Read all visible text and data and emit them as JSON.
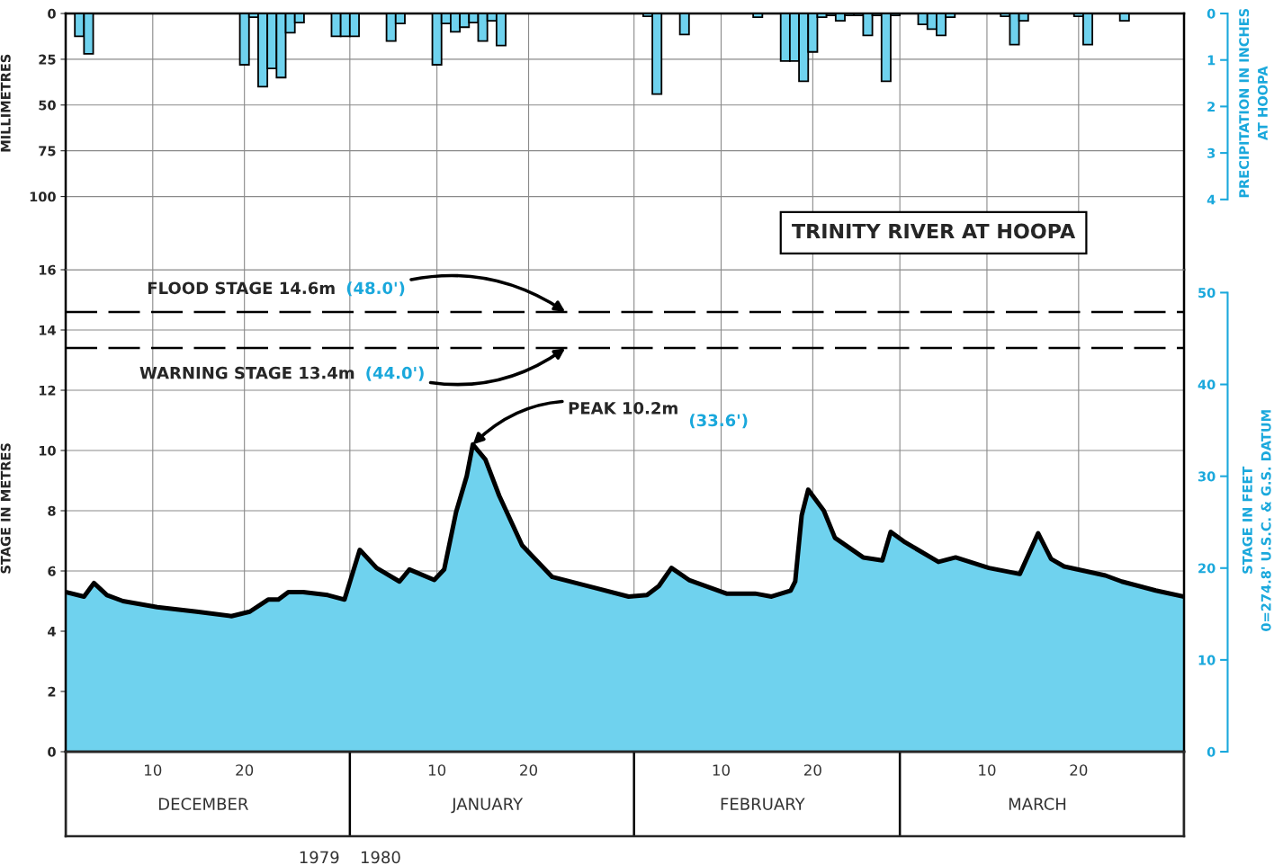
{
  "chart_data": [
    {
      "type": "bar",
      "title": "TRINITY RIVER AT HOOPA",
      "ylabel": "MILLIMETRES",
      "y2label": "PRECIPITATION IN INCHES\nAT HOOPA",
      "x": [
        "1979-12-02T12:00",
        "1979-12-03T12:00",
        "1979-12-20T12:00",
        "1979-12-21T12:00",
        "1979-12-22T12:00",
        "1979-12-23T12:00",
        "1979-12-24T12:00",
        "1979-12-25T12:00",
        "1979-12-26T12:00",
        "1979-12-30T12:00",
        "1979-12-31T12:00",
        "1980-01-01T12:00",
        "1980-01-05T12:00",
        "1980-01-06T12:00",
        "1980-01-10T12:00",
        "1980-01-11T12:00",
        "1980-01-12T12:00",
        "1980-01-13T12:00",
        "1980-01-14T12:00",
        "1980-01-15T12:00",
        "1980-01-16T12:00",
        "1980-01-17T12:00",
        "1980-02-02T12:00",
        "1980-02-03T12:00",
        "1980-02-06T12:00",
        "1980-02-14T12:00",
        "1980-02-17T12:00",
        "1980-02-18T12:00",
        "1980-02-19T12:00",
        "1980-02-20T12:00",
        "1980-02-21T12:00",
        "1980-02-22T12:00",
        "1980-02-23T12:00",
        "1980-02-24T12:00",
        "1980-02-25T12:00",
        "1980-02-26T12:00",
        "1980-02-27T12:00",
        "1980-02-28T12:00",
        "1980-02-29T12:00",
        "1980-03-03T12:00",
        "1980-03-04T12:00",
        "1980-03-05T12:00",
        "1980-03-06T12:00",
        "1980-03-12T12:00",
        "1980-03-13T12:00",
        "1980-03-14T12:00",
        "1980-03-20T12:00",
        "1980-03-21T12:00",
        "1980-03-25T12:00"
      ],
      "values": [
        12.5,
        22,
        28,
        2,
        40,
        30,
        35,
        10.5,
        5,
        12.5,
        12.5,
        12.5,
        15,
        5.5,
        28,
        5.5,
        10,
        7.5,
        5,
        15,
        4,
        17.5,
        1.5,
        44,
        11.5,
        2,
        26,
        26,
        37,
        21,
        2,
        1,
        4,
        1,
        1,
        12,
        1,
        37,
        1,
        6,
        8.5,
        12,
        2,
        1.5,
        17,
        4,
        1.5,
        17,
        4
      ],
      "color": "#6fd2ee",
      "xlim": [
        "1979-12-01",
        "1980-04-01"
      ],
      "xticks": [
        "1979-12-10T12:00",
        "1979-12-20T12:00",
        "1980-01-01",
        "1980-01-10T12:00",
        "1980-01-20T12:00",
        "1980-02-01",
        "1980-02-10T12:00",
        "1980-02-20T12:00",
        "1980-03-01",
        "1980-03-10T12:00",
        "1980-03-20T12:00"
      ],
      "ylim": [
        140,
        0
      ],
      "yticks": [
        0,
        25,
        50,
        75,
        100
      ],
      "y2lim": [
        5.512,
        0
      ],
      "y2ticks": [
        0,
        1,
        2,
        3,
        4
      ],
      "tick_labels": "y",
      "grid": true
    },
    {
      "type": "area",
      "ylabel": "STAGE IN METRES",
      "y2label": "STAGE IN FEET\n0=274.8' U.S.C. & G.S. DATUM",
      "series": [
        {
          "color": "#6fd2ee",
          "x": [
            "1979-12-01",
            "1979-12-03",
            "1979-12-04T02:00",
            "1979-12-05T12:00",
            "1979-12-07T06:00",
            "1979-12-11",
            "1979-12-15T07:00",
            "1979-12-19T02:00",
            "1979-12-21T02:00",
            "1979-12-23T02:00",
            "1979-12-24T05:00",
            "1979-12-25T07:00",
            "1979-12-26T22:00",
            "1979-12-29T14:00",
            "1979-12-31T10:00",
            "1980-01-02T02:00",
            "1980-01-03T22:00",
            "1980-01-06T10:00",
            "1980-01-07T12:00",
            "1980-01-10T05:00",
            "1980-01-11T07:00",
            "1980-01-12T14:00",
            "1980-01-13T18:00",
            "1980-01-14T10:00",
            "1980-01-15T19:00",
            "1980-01-17T07:00",
            "1980-01-19T19:00",
            "1980-01-23T02:00",
            "1980-01-27T14:00",
            "1980-01-31T10:00",
            "1980-02-02T10:00",
            "1980-02-03T17:00",
            "1980-02-05T02:00",
            "1980-02-07",
            "1980-02-11T02:00",
            "1980-02-14T05:00",
            "1980-02-16",
            "1980-02-18T02:00",
            "1980-02-18T14:00",
            "1980-02-19T07:00",
            "1980-02-20",
            "1980-02-21T17:00",
            "1980-02-22T22:00",
            "1980-02-26",
            "1980-02-28T02:00",
            "1980-02-29",
            "1980-03-01T14:00",
            "1980-03-05T05:00",
            "1980-03-07T02:00",
            "1980-03-10T17:00",
            "1980-03-14T02:00",
            "1980-03-16T02:00",
            "1980-03-17T12:00",
            "1980-03-18T22:00",
            "1980-03-23T10:00",
            "1980-03-25T05:00",
            "1980-03-28T22:00",
            "1980-04-01"
          ],
          "values": [
            5.3,
            5.15,
            5.6,
            5.2,
            5.0,
            4.8,
            4.65,
            4.5,
            4.65,
            5.05,
            5.05,
            5.3,
            5.3,
            5.2,
            5.05,
            6.7,
            6.1,
            5.65,
            6.05,
            5.7,
            6.05,
            7.95,
            9.15,
            10.2,
            9.7,
            8.5,
            6.85,
            5.8,
            5.45,
            5.15,
            5.2,
            5.5,
            6.1,
            5.7,
            5.25,
            5.25,
            5.15,
            5.35,
            5.65,
            7.85,
            8.7,
            8.0,
            7.1,
            6.45,
            6.35,
            7.3,
            6.95,
            6.3,
            6.45,
            6.1,
            5.9,
            7.25,
            6.4,
            6.15,
            5.85,
            5.65,
            5.35,
            5.15
          ]
        }
      ],
      "xlim": [
        "1979-12-01",
        "1980-04-01"
      ],
      "xticks": [
        {
          "value": "1979-12-10T12:00",
          "label": "10"
        },
        {
          "value": "1979-12-20T12:00",
          "label": "20"
        },
        {
          "value": "1980-01-01",
          "label": null
        },
        {
          "value": "1980-01-10T12:00",
          "label": "10"
        },
        {
          "value": "1980-01-20T12:00",
          "label": "20"
        },
        {
          "value": "1980-02-01",
          "label": null
        },
        {
          "value": "1980-02-10T12:00",
          "label": "10"
        },
        {
          "value": "1980-02-20T12:00",
          "label": "20"
        },
        {
          "value": "1980-03-01",
          "label": null
        },
        {
          "value": "1980-03-10T12:00",
          "label": "10"
        },
        {
          "value": "1980-03-20T12:00",
          "label": "20"
        }
      ],
      "ylim": [
        0,
        16
      ],
      "yticks": [
        0,
        2,
        4,
        6,
        8,
        10,
        12,
        14,
        16
      ],
      "y2lim": [
        0,
        52.49
      ],
      "y2ticks": [
        0,
        10,
        20,
        30,
        40,
        50
      ],
      "x2lim": [
        "1979-12-01",
        "1980-04-01"
      ],
      "x2ticks": [
        {
          "value": "1979-12-01",
          "label": null
        },
        {
          "value": "1979-12-16",
          "label": "DECEMBER"
        },
        {
          "value": "1980-01-01",
          "label": null
        },
        {
          "value": "1980-01-16",
          "label": "JANUARY"
        },
        {
          "value": "1980-02-01",
          "label": null
        },
        {
          "value": "1980-02-15",
          "label": "FEBRUARY"
        },
        {
          "value": "1980-03-01",
          "label": null
        },
        {
          "value": "1980-03-16",
          "label": "MARCH"
        },
        {
          "value": "1980-04-01",
          "label": null
        }
      ],
      "grid": true,
      "ref_lines": [
        {
          "axis": "y",
          "value": 14.6,
          "label": "FLOOD STAGE 14.6m",
          "color": "#000000",
          "line_style": "dashed"
        },
        {
          "axis": "y",
          "value": 13.4,
          "label": "WARNING STAGE 13.4m",
          "color": "#000000",
          "line_style": "dashed"
        }
      ],
      "annotations": [
        {
          "text": "(48.0')",
          "x": "1980-01-24T12:00",
          "y": 14.6
        },
        {
          "text": "(44.0')",
          "x": "1980-01-24T12:00",
          "y": 13.4
        },
        {
          "text": "PEAK 10.2m",
          "x": "1980-01-14T10:00",
          "y": 10.2
        },
        "(33.6')",
        "1979",
        "1980"
      ]
    }
  ]
}
